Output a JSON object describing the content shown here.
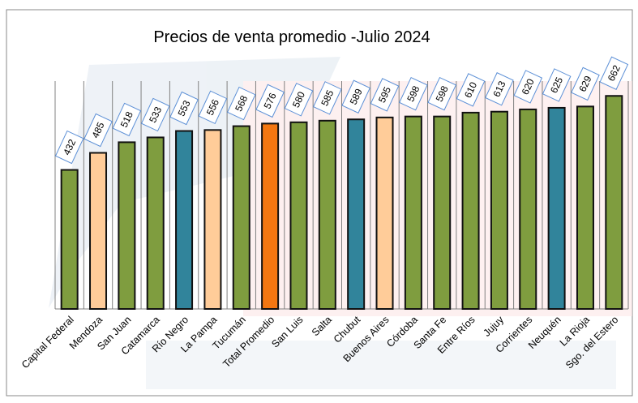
{
  "chart_data": {
    "type": "bar",
    "title": "Precios de venta promedio -Julio 2024",
    "xlabel": "",
    "ylabel": "",
    "ylim": [
      0,
      708
    ],
    "grid": "vertical separators",
    "legend": "none",
    "categories": [
      "Capital Federal",
      "Mendoza",
      "San Juan",
      "Catamarca",
      "Río Negro",
      "La Pampa",
      "Tucumán",
      "Total Promedio",
      "San Luis",
      "Salta",
      "Chubut",
      "Buenos Aires",
      "Córdoba",
      "Santa Fe",
      "Entre Ríos",
      "Jujuy",
      "Corrientes",
      "Neuquén",
      "La Rioja",
      "Sgo. del Estero"
    ],
    "values": [
      432,
      485,
      518,
      533,
      553,
      556,
      568,
      576,
      580,
      585,
      589,
      595,
      598,
      598,
      610,
      613,
      620,
      625,
      629,
      662
    ],
    "bar_colors": [
      "#7f9d3f",
      "#ffcc99",
      "#7f9d3f",
      "#7f9d3f",
      "#31849b",
      "#ffcc99",
      "#7f9d3f",
      "#f47711",
      "#7f9d3f",
      "#7f9d3f",
      "#31849b",
      "#ffcc99",
      "#7f9d3f",
      "#7f9d3f",
      "#7f9d3f",
      "#7f9d3f",
      "#7f9d3f",
      "#31849b",
      "#7f9d3f",
      "#7f9d3f"
    ],
    "label_border_color": "#5b8fd6"
  }
}
